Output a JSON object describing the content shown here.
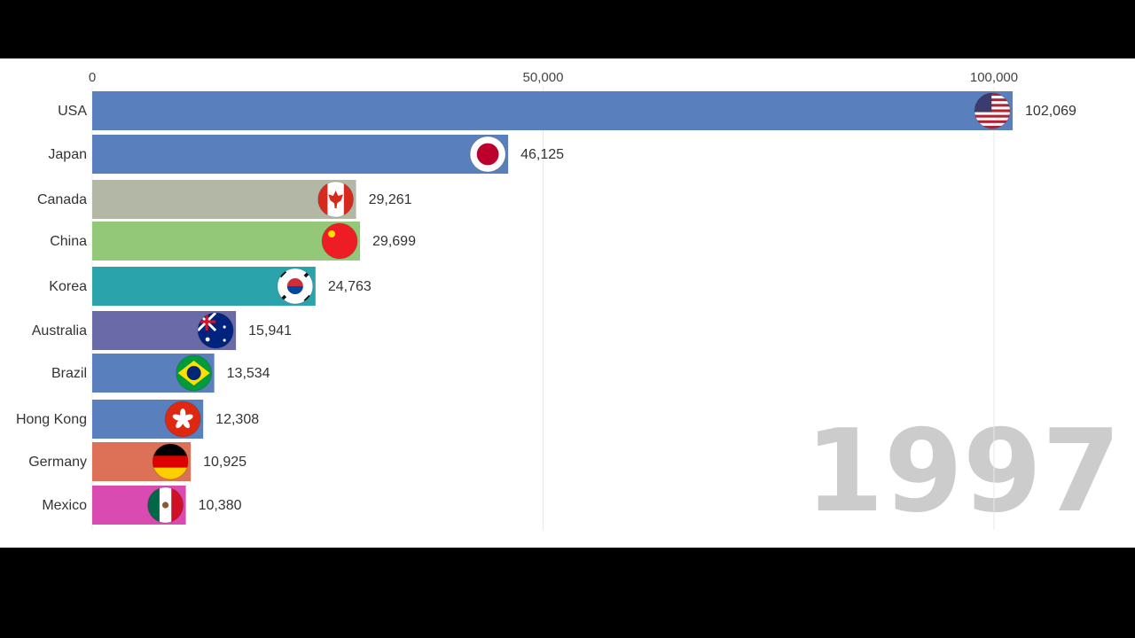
{
  "chart_data": {
    "type": "bar",
    "orientation": "horizontal",
    "year": "1997",
    "xlim": [
      0,
      100000
    ],
    "ticks": [
      {
        "value": 0,
        "label": "0"
      },
      {
        "value": 50000,
        "label": "50,000"
      },
      {
        "value": 100000,
        "label": "100,000"
      }
    ],
    "grid": true,
    "bars": [
      {
        "category": "USA",
        "value": 102069,
        "label": "102,069",
        "color": "#5a7fbd",
        "icon": "usa-flag-icon"
      },
      {
        "category": "Japan",
        "value": 46125,
        "label": "46,125",
        "color": "#5a7fbd",
        "icon": "japan-flag-icon"
      },
      {
        "category": "Canada",
        "value": 29261,
        "label": "29,261",
        "color": "#b3b7a6",
        "icon": "canada-flag-icon"
      },
      {
        "category": "China",
        "value": 29699,
        "label": "29,699",
        "color": "#92c878",
        "icon": "china-flag-icon"
      },
      {
        "category": "Korea",
        "value": 24763,
        "label": "24,763",
        "color": "#2ba3ab",
        "icon": "korea-flag-icon"
      },
      {
        "category": "Australia",
        "value": 15941,
        "label": "15,941",
        "color": "#6b6aa8",
        "icon": "australia-flag-icon"
      },
      {
        "category": "Brazil",
        "value": 13534,
        "label": "13,534",
        "color": "#5a7fbd",
        "icon": "brazil-flag-icon"
      },
      {
        "category": "Hong Kong",
        "value": 12308,
        "label": "12,308",
        "color": "#5a7fbd",
        "icon": "hong-kong-flag-icon"
      },
      {
        "category": "Germany",
        "value": 10925,
        "label": "10,925",
        "color": "#dc7158",
        "icon": "germany-flag-icon"
      },
      {
        "category": "Mexico",
        "value": 10380,
        "label": "10,380",
        "color": "#d94bb1",
        "icon": "mexico-flag-icon"
      }
    ]
  }
}
